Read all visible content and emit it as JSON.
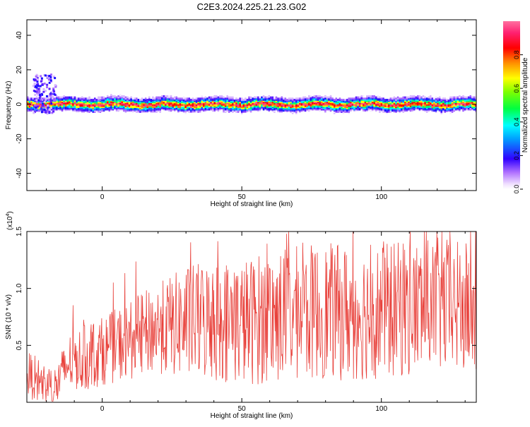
{
  "title": "C2E3.2024.225.21.23.G02",
  "colorbar": {
    "label": "Normalized spectral amplitude",
    "ticks": [
      0.0,
      0.2,
      0.4,
      0.6,
      0.8
    ],
    "tick_labels": [
      "0.0",
      "0.2",
      "0.4",
      "0.6",
      "0.8"
    ],
    "colormap": "rainbow (white-magenta-blue-cyan-green-yellow-orange-red-pink)"
  },
  "chart_data": [
    {
      "type": "heatmap",
      "title": "",
      "xlabel": "Height of straight line (km)",
      "ylabel": "Frequency (Hz)",
      "xlim": [
        -27,
        134
      ],
      "ylim": [
        -50,
        49
      ],
      "xticks": [
        0,
        50,
        100
      ],
      "xtick_labels": [
        "0",
        "50",
        "100"
      ],
      "yticks": [
        40,
        20,
        0,
        -20,
        -40
      ],
      "ytick_labels": [
        "40",
        "20",
        "0",
        "-20",
        "-40"
      ],
      "grid": false,
      "band_center_hz": 0,
      "band_halfwidth_hz": 3,
      "low_altitude_burst": {
        "x_range": [
          -25,
          -17
        ],
        "freq_range": [
          -5,
          18
        ]
      }
    },
    {
      "type": "line",
      "title": "",
      "xlabel": "Height of straight line (km)",
      "ylabel": "SNR (10 * v/v)",
      "scale_label": "(x10",
      "scale_exponent": "4",
      "scale_suffix": ")",
      "xlim": [
        -27,
        134
      ],
      "ylim": [
        0,
        1.5
      ],
      "xticks": [
        0,
        50,
        100
      ],
      "xtick_labels": [
        "0",
        "50",
        "100"
      ],
      "yticks": [
        0.5,
        1.0,
        1.5
      ],
      "ytick_labels": [
        "0.5",
        "1.0",
        "1.5"
      ],
      "line_color": "#e8403a",
      "grid": false,
      "series": [
        {
          "x": [
            -27,
            -22,
            -17,
            -12,
            -5,
            0,
            10,
            20,
            30,
            40,
            50,
            60,
            70,
            80,
            90,
            100,
            110,
            120,
            134
          ],
          "y": [
            0.25,
            0.18,
            0.12,
            0.35,
            0.4,
            0.45,
            0.55,
            0.65,
            0.7,
            0.72,
            0.7,
            0.75,
            0.78,
            0.8,
            0.78,
            0.8,
            0.82,
            0.85,
            0.8
          ]
        }
      ],
      "noise_amplitude": [
        0.2,
        0.2,
        0.2,
        0.25,
        0.3,
        0.3,
        0.35,
        0.4,
        0.5,
        0.55,
        0.55,
        0.6,
        0.6,
        0.6,
        0.6,
        0.6,
        0.6,
        0.6,
        0.6
      ]
    }
  ]
}
